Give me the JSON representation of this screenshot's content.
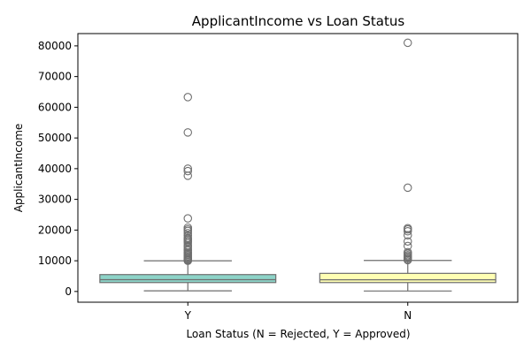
{
  "chart_data": {
    "type": "box",
    "title": "ApplicantIncome vs Loan Status",
    "xlabel": "Loan Status (N = Rejected, Y = Approved)",
    "ylabel": "ApplicantIncome",
    "categories": [
      "Y",
      "N"
    ],
    "ylim": [
      -3500,
      84000
    ],
    "yticks": [
      0,
      10000,
      20000,
      30000,
      40000,
      50000,
      60000,
      70000,
      80000
    ],
    "ytick_labels": [
      "0",
      "10000",
      "20000",
      "30000",
      "40000",
      "50000",
      "60000",
      "70000",
      "80000"
    ],
    "grid": false,
    "boxes": [
      {
        "category": "Y",
        "color": "#8dd3c7",
        "whisker_low": 200,
        "q1": 2900,
        "median": 3850,
        "q3": 5500,
        "whisker_high": 10000,
        "outliers": [
          10000,
          10200,
          10500,
          10800,
          11100,
          11500,
          11900,
          12300,
          12700,
          13300,
          13800,
          14500,
          15000,
          15800,
          16300,
          16700,
          17100,
          17500,
          18200,
          19000,
          19700,
          20200,
          20800,
          23800,
          37700,
          39200,
          40000,
          51800,
          63300
        ]
      },
      {
        "category": "N",
        "color": "#ffffb3",
        "whisker_low": 150,
        "q1": 2900,
        "median": 3800,
        "q3": 5900,
        "whisker_high": 10100,
        "outliers": [
          10200,
          10600,
          11000,
          11400,
          11800,
          12300,
          12800,
          14800,
          16300,
          18300,
          19600,
          20200,
          20600,
          33800,
          81000
        ]
      }
    ]
  }
}
